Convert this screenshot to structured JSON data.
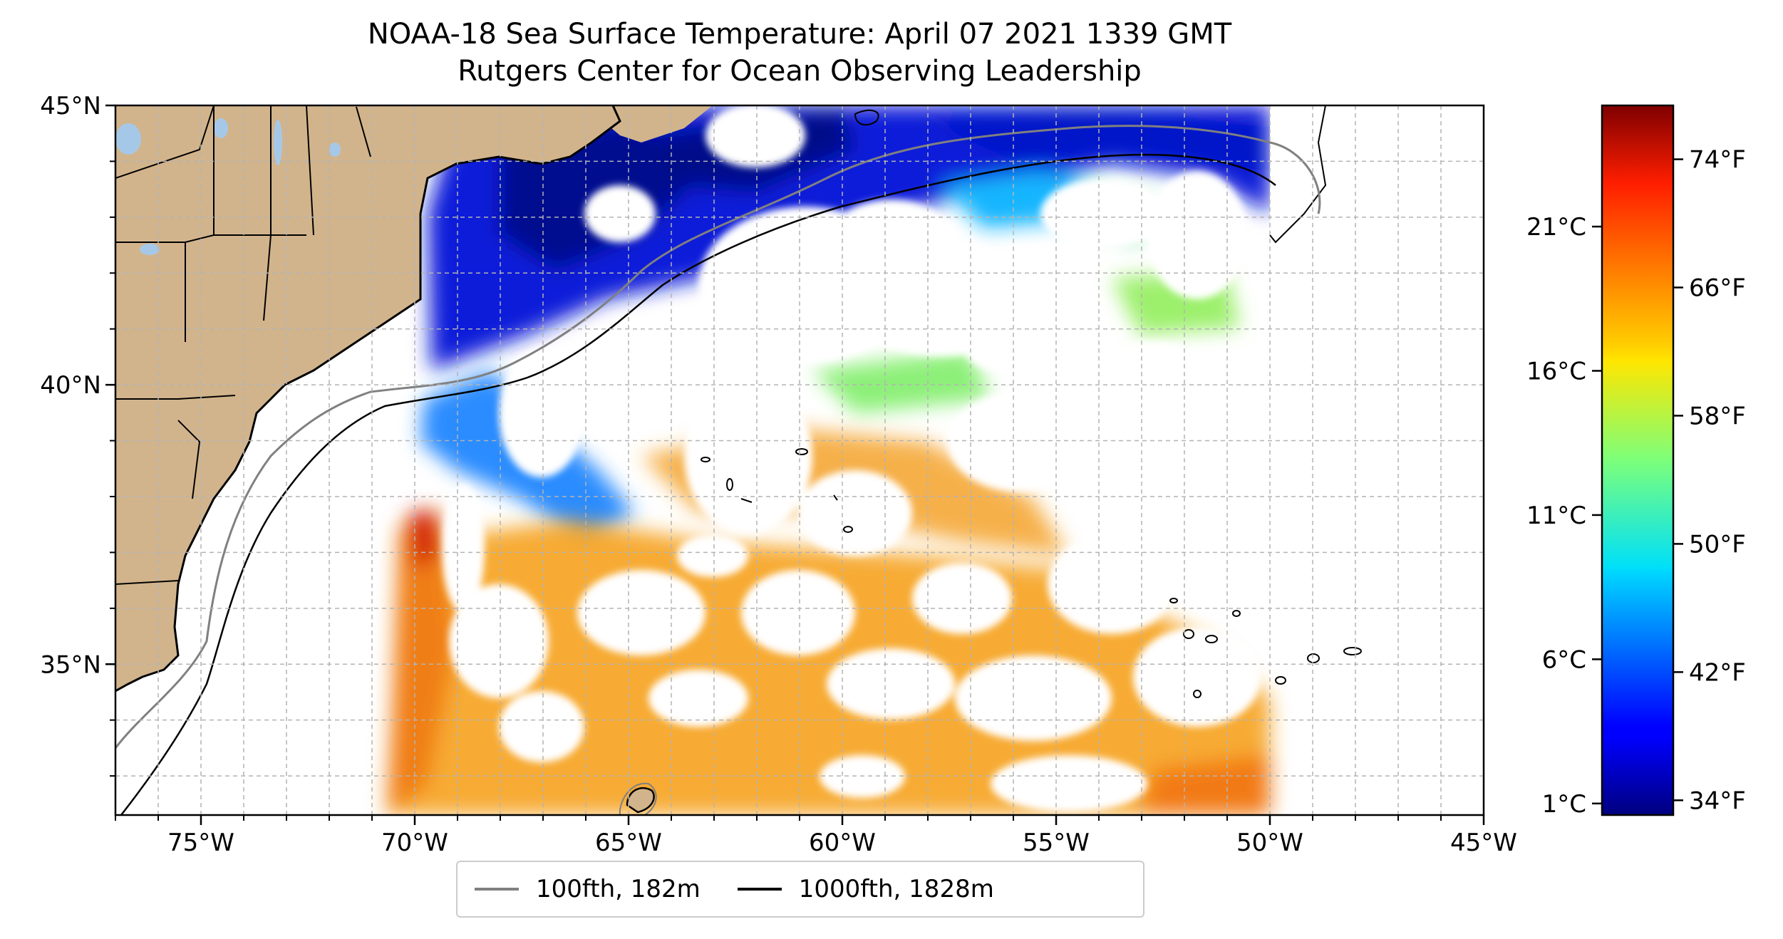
{
  "title_line1": "NOAA-18 Sea Surface Temperature: April 07 2021 1339 GMT",
  "title_line2": "Rutgers Center for Ocean Observing Leadership",
  "map": {
    "lon_range": [
      -77,
      -45
    ],
    "lat_range": [
      32.3,
      45
    ],
    "grid": true,
    "land_color": "#d2b48c",
    "lake_color": "#a6c8e8",
    "lon_ticks": [
      {
        "value": -75,
        "label": "75°W"
      },
      {
        "value": -70,
        "label": "70°W"
      },
      {
        "value": -65,
        "label": "65°W"
      },
      {
        "value": -60,
        "label": "60°W"
      },
      {
        "value": -55,
        "label": "55°W"
      },
      {
        "value": -50,
        "label": "50°W"
      },
      {
        "value": -45,
        "label": "45°W"
      }
    ],
    "lat_ticks": [
      {
        "value": 45,
        "label": "45°N"
      },
      {
        "value": 40,
        "label": "40°N"
      },
      {
        "value": 35,
        "label": "35°N"
      }
    ],
    "sst_swath_lon_range": [
      -70.7,
      -50
    ]
  },
  "colorbar": {
    "colormap": "jet",
    "range_c": [
      0.6,
      25.2
    ],
    "celsius_ticks": [
      {
        "value": 1,
        "label": "1°C"
      },
      {
        "value": 6,
        "label": "6°C"
      },
      {
        "value": 11,
        "label": "11°C"
      },
      {
        "value": 16,
        "label": "16°C"
      },
      {
        "value": 21,
        "label": "21°C"
      }
    ],
    "fahrenheit_ticks": [
      {
        "value": 34,
        "label": "34°F"
      },
      {
        "value": 42,
        "label": "42°F"
      },
      {
        "value": 50,
        "label": "50°F"
      },
      {
        "value": 58,
        "label": "58°F"
      },
      {
        "value": 66,
        "label": "66°F"
      },
      {
        "value": 74,
        "label": "74°F"
      }
    ]
  },
  "legend": [
    {
      "label": "100fth, 182m",
      "color": "#808080"
    },
    {
      "label": "1000fth, 1828m",
      "color": "#000000"
    }
  ]
}
